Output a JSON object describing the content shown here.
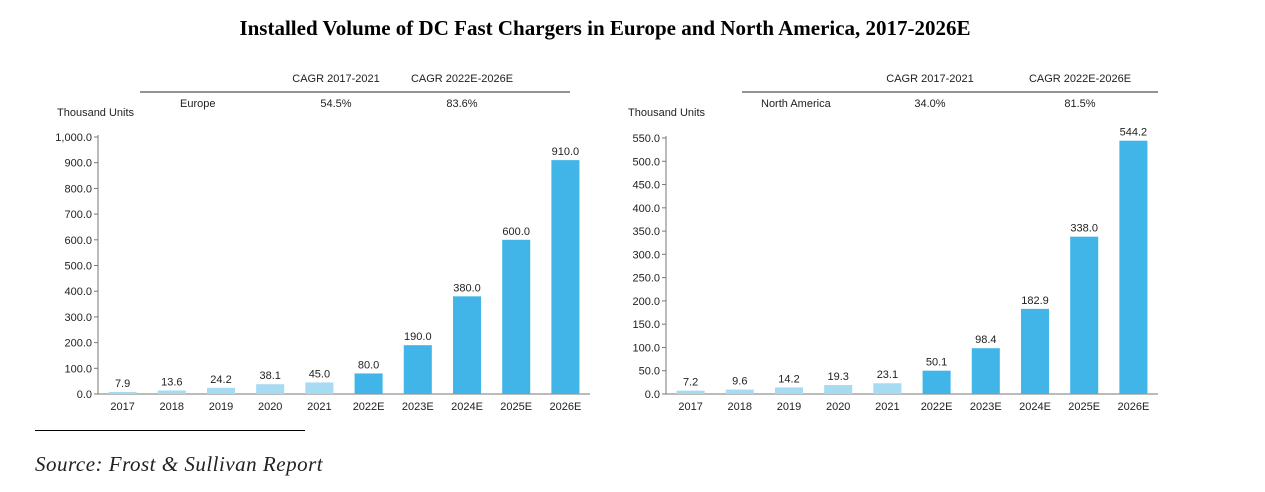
{
  "title": "Installed Volume of DC Fast Chargers in Europe and North America, 2017-2026E",
  "source": "Source: Frost & Sullivan Report",
  "colors": {
    "historical": "#a6dbf2",
    "forecast": "#41b5e7"
  },
  "chart_data": [
    {
      "type": "bar",
      "ylabel": "Thousand Units",
      "region": "Europe",
      "cagr_headers": [
        "CAGR 2017-2021",
        "CAGR 2022E-2026E"
      ],
      "cagr_values": [
        "54.5%",
        "83.6%"
      ],
      "categories": [
        "2017",
        "2018",
        "2019",
        "2020",
        "2021",
        "2022E",
        "2023E",
        "2024E",
        "2025E",
        "2026E"
      ],
      "values": [
        7.9,
        13.6,
        24.2,
        38.1,
        45.0,
        80.0,
        190.0,
        380.0,
        600.0,
        910.0
      ],
      "value_labels": [
        "7.9",
        "13.6",
        "24.2",
        "38.1",
        "45.0",
        "80.0",
        "190.0",
        "380.0",
        "600.0",
        "910.0"
      ],
      "ylim": [
        0,
        1000
      ],
      "yticks": [
        "0.0",
        "100.0",
        "200.0",
        "300.0",
        "400.0",
        "500.0",
        "600.0",
        "700.0",
        "800.0",
        "900.0",
        "1,000.0"
      ]
    },
    {
      "type": "bar",
      "ylabel": "Thousand Units",
      "region": "North America",
      "cagr_headers": [
        "CAGR 2017-2021",
        "CAGR 2022E-2026E"
      ],
      "cagr_values": [
        "34.0%",
        "81.5%"
      ],
      "categories": [
        "2017",
        "2018",
        "2019",
        "2020",
        "2021",
        "2022E",
        "2023E",
        "2024E",
        "2025E",
        "2026E"
      ],
      "values": [
        7.2,
        9.6,
        14.2,
        19.3,
        23.1,
        50.1,
        98.4,
        182.9,
        338.0,
        544.2
      ],
      "value_labels": [
        "7.2",
        "9.6",
        "14.2",
        "19.3",
        "23.1",
        "50.1",
        "98.4",
        "182.9",
        "338.0",
        "544.2"
      ],
      "ylim": [
        0,
        550
      ],
      "yticks": [
        "0.0",
        "50.0",
        "100.0",
        "150.0",
        "200.0",
        "250.0",
        "300.0",
        "350.0",
        "400.0",
        "450.0",
        "500.0",
        "550.0"
      ]
    }
  ]
}
